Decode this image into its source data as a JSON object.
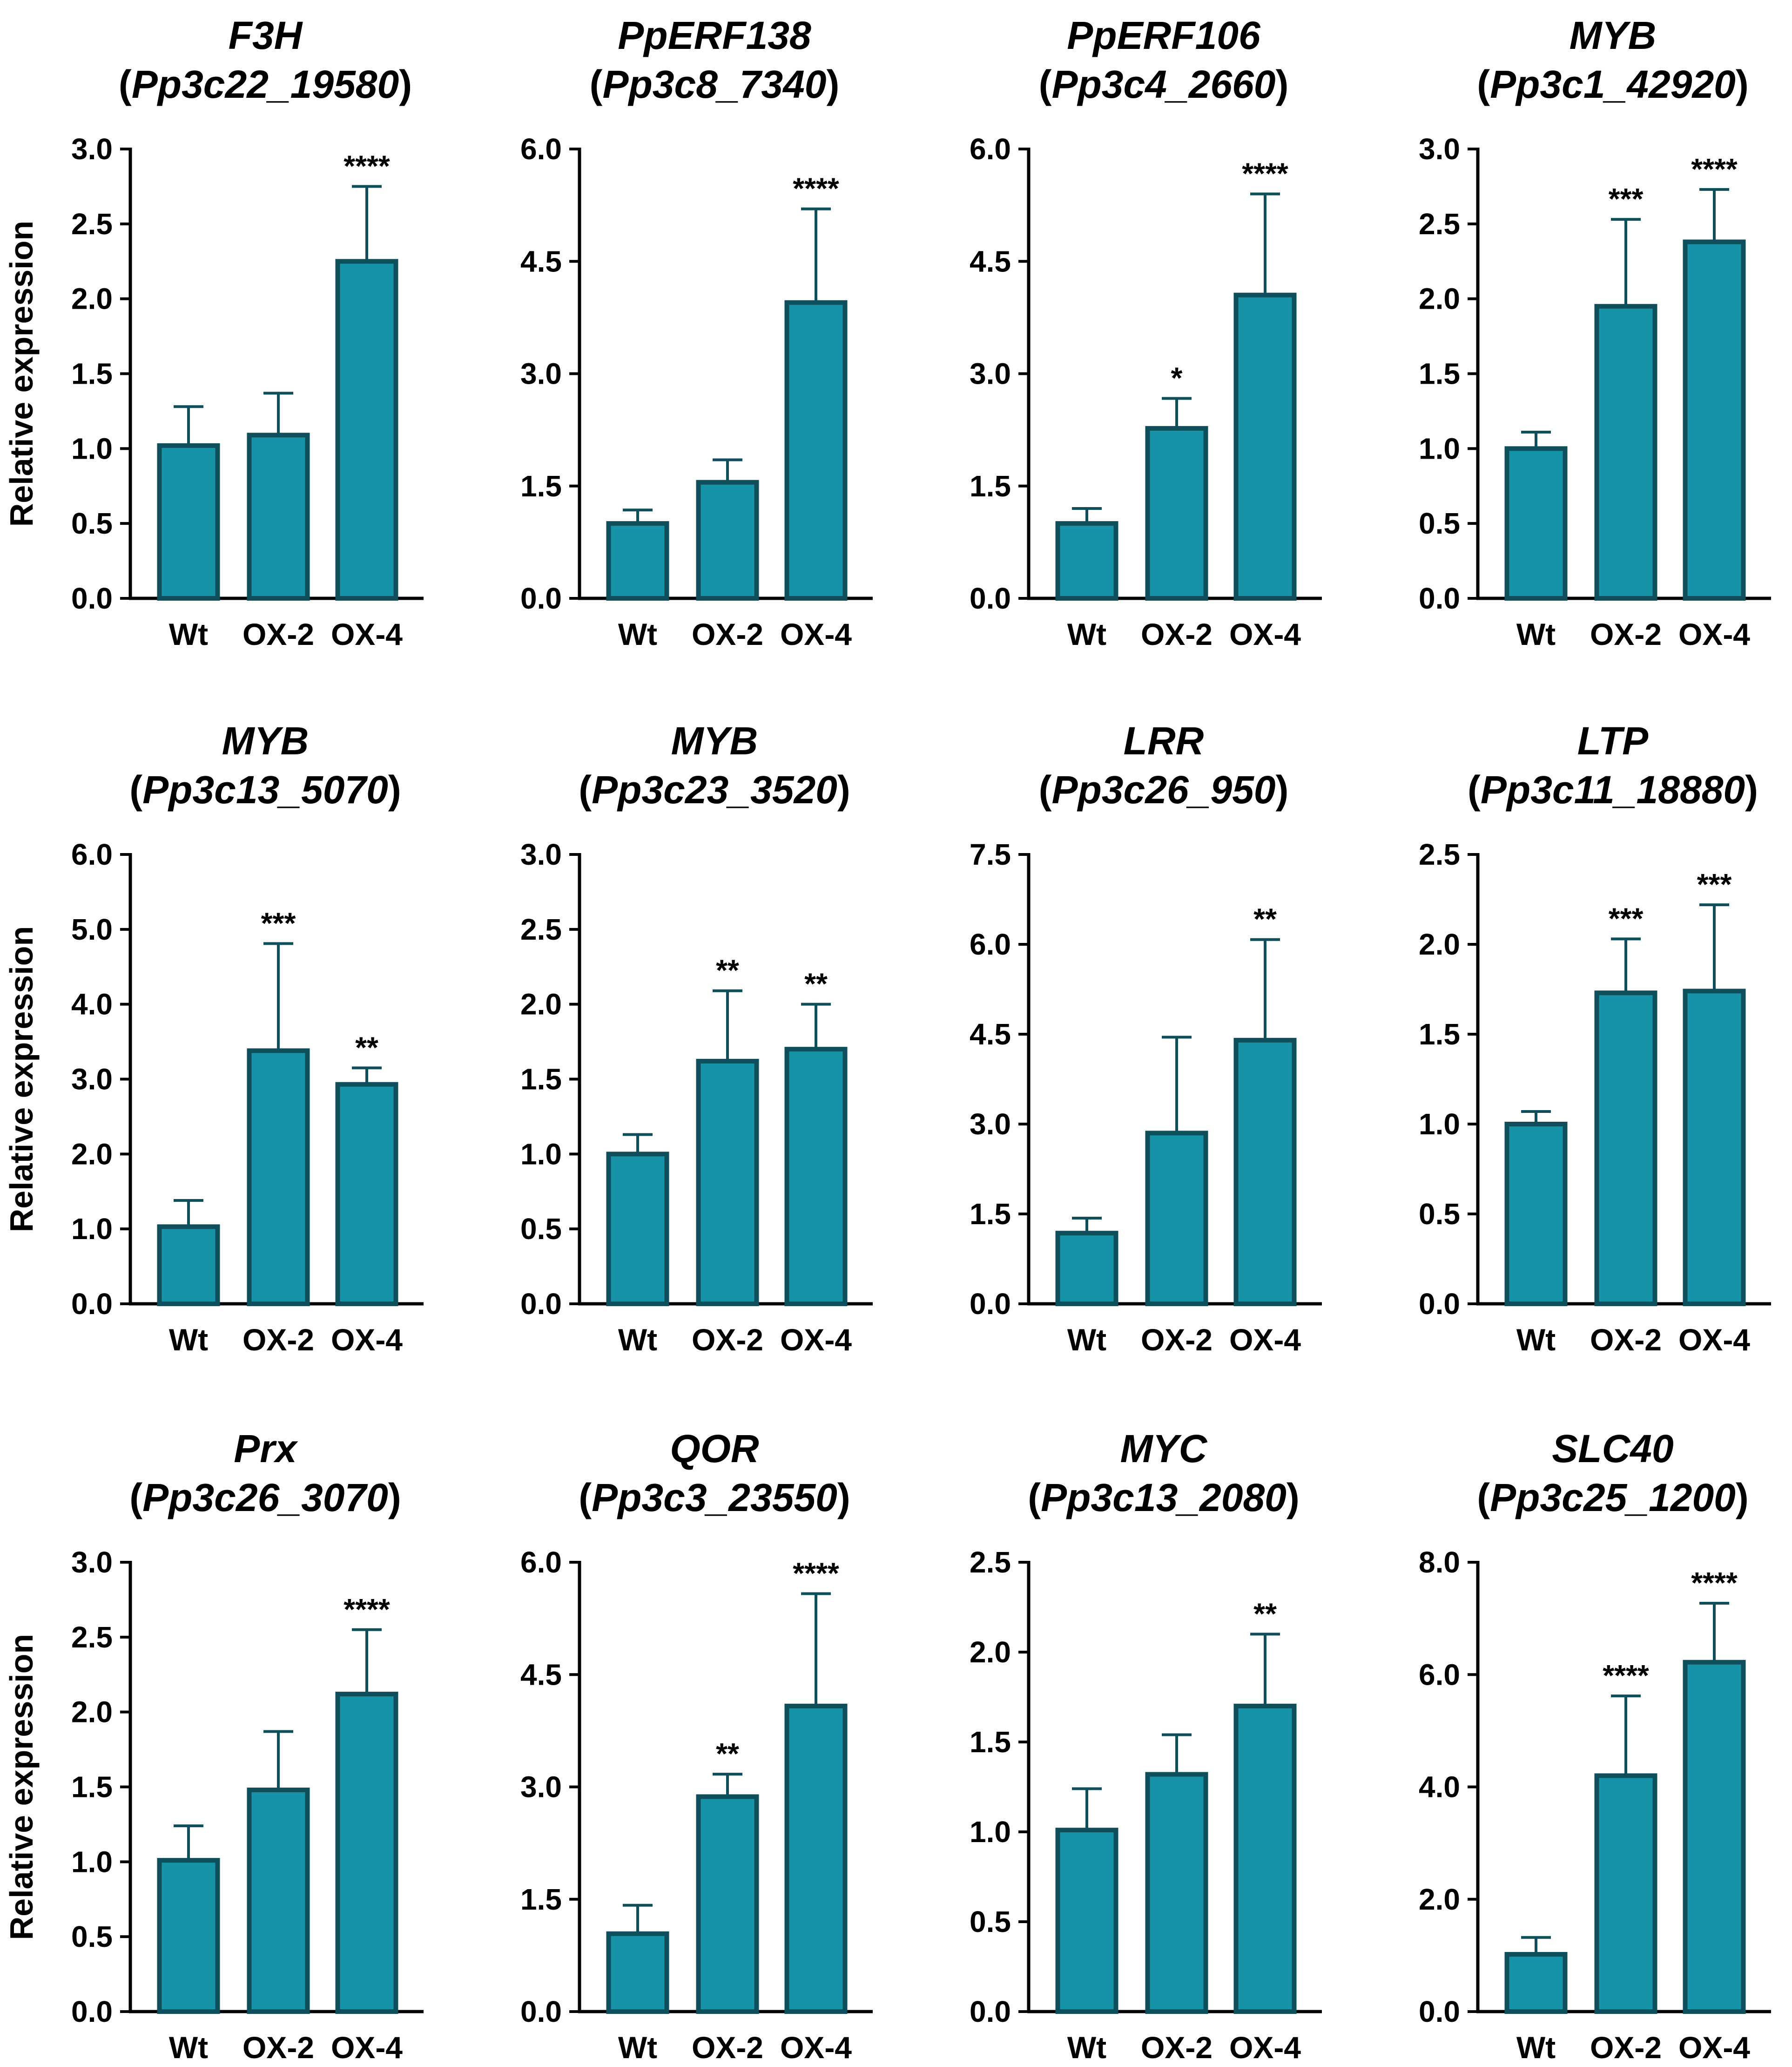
{
  "colors": {
    "bar_fill": "#1793A8",
    "bar_edge": "#0F4F5C",
    "axis": "#000000"
  },
  "chart_data": [
    {
      "type": "bar",
      "title": "F3H",
      "subtitle": "Pp3c22_19580",
      "ylabel": "Relative expression",
      "categories": [
        "Wt",
        "OX-2",
        "OX-4"
      ],
      "values": [
        1.02,
        1.09,
        2.25
      ],
      "errors": [
        0.26,
        0.28,
        0.5
      ],
      "significance": [
        "",
        "",
        "****"
      ],
      "ylim": [
        0,
        3.0
      ],
      "yticks": [
        "0.0",
        "0.5",
        "1.0",
        "1.5",
        "2.0",
        "2.5",
        "3.0"
      ]
    },
    {
      "type": "bar",
      "title": "PpERF138",
      "subtitle": "Pp3c8_7340",
      "ylabel": "",
      "categories": [
        "Wt",
        "OX-2",
        "OX-4"
      ],
      "values": [
        1.0,
        1.55,
        3.95
      ],
      "errors": [
        0.18,
        0.3,
        1.25
      ],
      "significance": [
        "",
        "",
        "****"
      ],
      "ylim": [
        0,
        6.0
      ],
      "yticks": [
        "0.0",
        "1.5",
        "3.0",
        "4.5",
        "6.0"
      ]
    },
    {
      "type": "bar",
      "title": "PpERF106",
      "subtitle": "Pp3c4_2660",
      "ylabel": "",
      "categories": [
        "Wt",
        "OX-2",
        "OX-4"
      ],
      "values": [
        1.0,
        2.27,
        4.05
      ],
      "errors": [
        0.2,
        0.4,
        1.35
      ],
      "significance": [
        "",
        "*",
        "****"
      ],
      "ylim": [
        0,
        6.0
      ],
      "yticks": [
        "0.0",
        "1.5",
        "3.0",
        "4.5",
        "6.0"
      ]
    },
    {
      "type": "bar",
      "title": "MYB",
      "subtitle": "Pp3c1_42920",
      "ylabel": "",
      "categories": [
        "Wt",
        "OX-2",
        "OX-4"
      ],
      "values": [
        1.0,
        1.95,
        2.38
      ],
      "errors": [
        0.11,
        0.58,
        0.35
      ],
      "significance": [
        "",
        "***",
        "****"
      ],
      "ylim": [
        0,
        3.0
      ],
      "yticks": [
        "0.0",
        "0.5",
        "1.0",
        "1.5",
        "2.0",
        "2.5",
        "3.0"
      ]
    },
    {
      "type": "bar",
      "title": "MYB",
      "subtitle": "Pp3c13_5070",
      "ylabel": "Relative expression",
      "categories": [
        "Wt",
        "OX-2",
        "OX-4"
      ],
      "values": [
        1.03,
        3.38,
        2.93
      ],
      "errors": [
        0.35,
        1.43,
        0.22
      ],
      "significance": [
        "",
        "***",
        "**"
      ],
      "ylim": [
        0,
        6.0
      ],
      "yticks": [
        "0.0",
        "1.0",
        "2.0",
        "3.0",
        "4.0",
        "5.0",
        "6.0"
      ]
    },
    {
      "type": "bar",
      "title": "MYB",
      "subtitle": "Pp3c23_3520",
      "ylabel": "",
      "categories": [
        "Wt",
        "OX-2",
        "OX-4"
      ],
      "values": [
        1.0,
        1.62,
        1.7
      ],
      "errors": [
        0.13,
        0.47,
        0.3
      ],
      "significance": [
        "",
        "**",
        "**"
      ],
      "ylim": [
        0,
        3.0
      ],
      "yticks": [
        "0.0",
        "0.5",
        "1.0",
        "1.5",
        "2.0",
        "2.5",
        "3.0"
      ]
    },
    {
      "type": "bar",
      "title": "LRR",
      "subtitle": "Pp3c26_950",
      "ylabel": "",
      "categories": [
        "Wt",
        "OX-2",
        "OX-4"
      ],
      "values": [
        1.18,
        2.85,
        4.4
      ],
      "errors": [
        0.25,
        1.6,
        1.68
      ],
      "significance": [
        "",
        "",
        "**"
      ],
      "ylim": [
        0,
        7.5
      ],
      "yticks": [
        "0.0",
        "1.5",
        "3.0",
        "4.5",
        "6.0",
        "7.5"
      ]
    },
    {
      "type": "bar",
      "title": "LTP",
      "subtitle": "Pp3c11_18880",
      "ylabel": "",
      "categories": [
        "Wt",
        "OX-2",
        "OX-4"
      ],
      "values": [
        1.0,
        1.73,
        1.74
      ],
      "errors": [
        0.07,
        0.3,
        0.48
      ],
      "significance": [
        "",
        "***",
        "***"
      ],
      "ylim": [
        0,
        2.5
      ],
      "yticks": [
        "0.0",
        "0.5",
        "1.0",
        "1.5",
        "2.0",
        "2.5"
      ]
    },
    {
      "type": "bar",
      "title": "Prx",
      "subtitle": "Pp3c26_3070",
      "ylabel": "Relative expression",
      "categories": [
        "Wt",
        "OX-2",
        "OX-4"
      ],
      "values": [
        1.01,
        1.48,
        2.12
      ],
      "errors": [
        0.23,
        0.39,
        0.43
      ],
      "significance": [
        "",
        "",
        "****"
      ],
      "ylim": [
        0,
        3.0
      ],
      "yticks": [
        "0.0",
        "0.5",
        "1.0",
        "1.5",
        "2.0",
        "2.5",
        "3.0"
      ]
    },
    {
      "type": "bar",
      "title": "QOR",
      "subtitle": "Pp3c3_23550",
      "ylabel": "",
      "categories": [
        "Wt",
        "OX-2",
        "OX-4"
      ],
      "values": [
        1.04,
        2.87,
        4.08
      ],
      "errors": [
        0.38,
        0.3,
        1.5
      ],
      "significance": [
        "",
        "**",
        "****"
      ],
      "ylim": [
        0,
        6.0
      ],
      "yticks": [
        "0.0",
        "1.5",
        "3.0",
        "4.5",
        "6.0"
      ]
    },
    {
      "type": "bar",
      "title": "MYC",
      "subtitle": "Pp3c13_2080",
      "ylabel": "",
      "categories": [
        "Wt",
        "OX-2",
        "OX-4"
      ],
      "values": [
        1.01,
        1.32,
        1.7
      ],
      "errors": [
        0.23,
        0.22,
        0.4
      ],
      "significance": [
        "",
        "",
        "**"
      ],
      "ylim": [
        0,
        2.5
      ],
      "yticks": [
        "0.0",
        "0.5",
        "1.0",
        "1.5",
        "2.0",
        "2.5"
      ]
    },
    {
      "type": "bar",
      "title": "SLC40",
      "subtitle": "Pp3c25_1200",
      "ylabel": "",
      "categories": [
        "Wt",
        "OX-2",
        "OX-4"
      ],
      "values": [
        1.02,
        4.2,
        6.22
      ],
      "errors": [
        0.3,
        1.42,
        1.05
      ],
      "significance": [
        "",
        "****",
        "****"
      ],
      "ylim": [
        0,
        8.0
      ],
      "yticks": [
        "0.0",
        "2.0",
        "4.0",
        "6.0",
        "8.0"
      ]
    }
  ]
}
